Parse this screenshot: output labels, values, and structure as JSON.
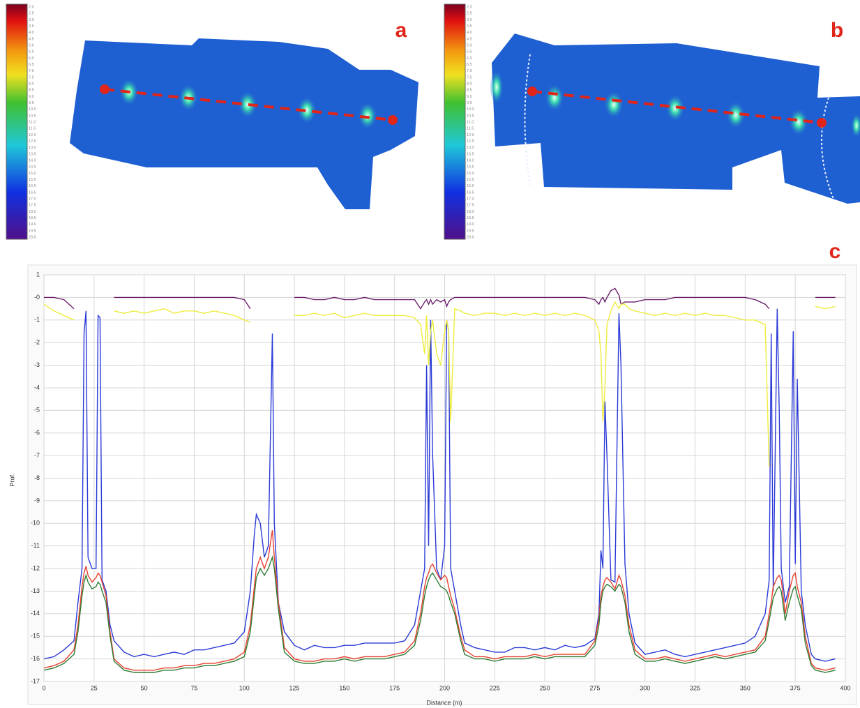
{
  "figure_labels": [
    "a",
    "b",
    "c"
  ],
  "colorbar_labels": [
    "2.0",
    "2.5",
    "3.0",
    "3.5",
    "4.0",
    "4.5",
    "5.0",
    "5.5",
    "6.0",
    "6.5",
    "7.0",
    "7.5",
    "8.0",
    "8.5",
    "9.0",
    "9.5",
    "10.0",
    "10.5",
    "11.0",
    "11.5",
    "12.0",
    "12.5",
    "13.0",
    "13.5",
    "14.0",
    "14.5",
    "15.0",
    "15.5",
    "16.0",
    "16.5",
    "17.0",
    "17.5",
    "18.0",
    "18.5",
    "19.0",
    "19.5",
    "20.0"
  ],
  "chart_data": {
    "type": "line",
    "xlabel": "Distance (m)",
    "ylabel": "Prof.",
    "xlim": [
      0,
      400
    ],
    "ylim": [
      -17,
      1
    ],
    "xticks": [
      0,
      25,
      50,
      75,
      100,
      125,
      150,
      175,
      200,
      225,
      250,
      275,
      300,
      325,
      350,
      375,
      400
    ],
    "yticks": [
      1,
      {
        "value": 0,
        "label": "-0"
      },
      -1,
      -2,
      -3,
      -4,
      -5,
      -6,
      -7,
      -8,
      -9,
      -10,
      -11,
      -12,
      -13,
      -14,
      -15,
      -16,
      -17
    ],
    "grid": true,
    "x": [
      0,
      5,
      10,
      15,
      17,
      19,
      20,
      21,
      22,
      24,
      26,
      27,
      28,
      29,
      31,
      33,
      35,
      40,
      45,
      50,
      55,
      60,
      65,
      70,
      75,
      80,
      85,
      90,
      95,
      100,
      103,
      105,
      106,
      108,
      110,
      112,
      114,
      115,
      117,
      120,
      125,
      130,
      135,
      140,
      145,
      150,
      155,
      160,
      165,
      170,
      175,
      180,
      185,
      188,
      190,
      191,
      192,
      193,
      194,
      196,
      198,
      200,
      201,
      202,
      203,
      205,
      208,
      210,
      215,
      220,
      225,
      230,
      235,
      240,
      245,
      250,
      255,
      260,
      265,
      270,
      275,
      277,
      278,
      279,
      280,
      281,
      283,
      285,
      287,
      288,
      290,
      292,
      295,
      300,
      305,
      310,
      315,
      320,
      325,
      330,
      335,
      340,
      345,
      350,
      355,
      360,
      362,
      363,
      364,
      366,
      367,
      368,
      370,
      372,
      374,
      375,
      376,
      378,
      380,
      383,
      385,
      390,
      395
    ],
    "series": [
      {
        "color": "#2a3ad6",
        "values": [
          -16,
          -15.9,
          -15.6,
          -15.2,
          -13.5,
          -12,
          -1.6,
          -0.6,
          -11.5,
          -12,
          -12,
          -0.8,
          -0.9,
          -12.5,
          -13,
          -14.5,
          -15.2,
          -15.7,
          -15.9,
          -15.8,
          -15.9,
          -15.8,
          -15.7,
          -15.8,
          -15.6,
          -15.6,
          -15.5,
          -15.4,
          -15.3,
          -14.8,
          -13,
          -10.5,
          -9.6,
          -10,
          -11.5,
          -11,
          -1.6,
          -10,
          -13.5,
          -14.8,
          -15.4,
          -15.6,
          -15.4,
          -15.5,
          -15.5,
          -15.4,
          -15.4,
          -15.3,
          -15.3,
          -15.3,
          -15.3,
          -15.2,
          -14.5,
          -13,
          -12,
          -3,
          -11,
          -1,
          -7,
          -12,
          -12.5,
          -11,
          -1,
          -1.5,
          -12,
          -13,
          -14.5,
          -15.3,
          -15.5,
          -15.6,
          -15.7,
          -15.7,
          -15.5,
          -15.5,
          -15.6,
          -15.5,
          -15.6,
          -15.4,
          -15.5,
          -15.4,
          -15.1,
          -14,
          -11.2,
          -12,
          -4.6,
          -7,
          -12.5,
          -12.6,
          -0.7,
          -3,
          -11.8,
          -14,
          -15.3,
          -15.8,
          -15.7,
          -15.6,
          -15.8,
          -15.9,
          -15.8,
          -15.7,
          -15.6,
          -15.5,
          -15.4,
          -15.3,
          -15,
          -14,
          -12.5,
          -1.6,
          -13,
          -0.5,
          -5,
          -12,
          -13.5,
          -12.8,
          -1.5,
          -11.8,
          -3.6,
          -13,
          -14.5,
          -15.8,
          -16,
          -16.1,
          -16
        ]
      },
      {
        "color": "#e8412f",
        "values": [
          -16.4,
          -16.3,
          -16.1,
          -15.6,
          -14.5,
          -12.8,
          -12.2,
          -11.9,
          -12.3,
          -12.6,
          -12.4,
          -12.2,
          -12.3,
          -12.6,
          -13.2,
          -14.8,
          -16,
          -16.4,
          -16.5,
          -16.5,
          -16.5,
          -16.4,
          -16.4,
          -16.3,
          -16.3,
          -16.2,
          -16.2,
          -16.1,
          -16,
          -15.7,
          -14.5,
          -12.8,
          -12,
          -11.5,
          -12,
          -11.5,
          -10.3,
          -11.5,
          -13.5,
          -15.5,
          -16,
          -16.1,
          -16.1,
          -16,
          -16,
          -15.9,
          -16,
          -15.9,
          -15.9,
          -15.9,
          -15.8,
          -15.7,
          -15.2,
          -14,
          -12.8,
          -12.4,
          -12.2,
          -11.9,
          -11.8,
          -12.2,
          -12.5,
          -12.3,
          -12.4,
          -12.8,
          -13.2,
          -13.8,
          -15,
          -15.6,
          -15.9,
          -15.9,
          -16,
          -15.9,
          -15.9,
          -15.9,
          -15.8,
          -15.9,
          -15.8,
          -15.8,
          -15.8,
          -15.8,
          -15.2,
          -14.2,
          -13.2,
          -12.8,
          -12.5,
          -12.4,
          -12.6,
          -12.9,
          -12.3,
          -12.5,
          -13.2,
          -14.5,
          -15.6,
          -16,
          -16,
          -15.9,
          -16,
          -16.1,
          -16,
          -15.9,
          -15.8,
          -15.9,
          -15.8,
          -15.7,
          -15.6,
          -15,
          -14,
          -13.5,
          -12.8,
          -12.4,
          -12.3,
          -12.5,
          -14,
          -13,
          -12.3,
          -12.2,
          -12.8,
          -13.5,
          -15,
          -16.2,
          -16.4,
          -16.5,
          -16.4
        ]
      },
      {
        "color": "#2f7d35",
        "values": [
          -16.5,
          -16.4,
          -16.2,
          -15.8,
          -14.8,
          -13.2,
          -12.6,
          -12.3,
          -12.6,
          -12.9,
          -12.8,
          -12.6,
          -12.7,
          -13,
          -13.5,
          -15,
          -16.1,
          -16.5,
          -16.6,
          -16.6,
          -16.6,
          -16.5,
          -16.5,
          -16.4,
          -16.4,
          -16.3,
          -16.3,
          -16.2,
          -16.1,
          -15.9,
          -14.8,
          -13.2,
          -12.4,
          -12,
          -12.3,
          -12,
          -11.5,
          -12,
          -13.8,
          -15.7,
          -16.1,
          -16.2,
          -16.2,
          -16.1,
          -16.1,
          -16,
          -16.1,
          -16,
          -16,
          -16,
          -15.9,
          -15.8,
          -15.4,
          -14.3,
          -13.2,
          -12.8,
          -12.5,
          -12.3,
          -12.2,
          -12.5,
          -12.8,
          -12.9,
          -13,
          -13.2,
          -13.5,
          -14,
          -15.2,
          -15.8,
          -16,
          -16,
          -16.1,
          -16,
          -16,
          -16,
          -15.9,
          -16,
          -15.9,
          -15.9,
          -15.9,
          -15.9,
          -15.4,
          -14.5,
          -13.5,
          -13,
          -12.8,
          -12.7,
          -12.8,
          -13,
          -12.7,
          -12.8,
          -13.5,
          -14.8,
          -15.8,
          -16.1,
          -16.1,
          -16,
          -16.1,
          -16.2,
          -16.1,
          -16,
          -15.9,
          -16,
          -15.9,
          -15.8,
          -15.7,
          -15.2,
          -14.3,
          -13.8,
          -13.3,
          -12.9,
          -12.8,
          -13,
          -14.3,
          -13.5,
          -12.9,
          -12.8,
          -13.2,
          -13.8,
          -15.3,
          -16.3,
          -16.5,
          -16.6,
          -16.5
        ]
      },
      {
        "color": "#6b1f6b",
        "values": [
          0,
          0,
          -0.1,
          -0.5,
          null,
          null,
          null,
          null,
          null,
          null,
          null,
          null,
          null,
          null,
          null,
          null,
          0,
          0,
          0,
          0,
          0,
          0,
          0,
          0,
          0,
          0,
          0,
          0,
          0,
          -0.1,
          -0.5,
          null,
          null,
          null,
          null,
          null,
          null,
          null,
          null,
          null,
          0,
          0,
          -0.1,
          -0.1,
          0,
          -0.1,
          -0.1,
          0,
          -0.1,
          -0.1,
          -0.1,
          -0.1,
          -0.1,
          -0.5,
          -0.2,
          -0.1,
          -0.3,
          -0.1,
          -0.3,
          -0.1,
          -0.2,
          -0.1,
          -0.4,
          -0.2,
          -0.1,
          0,
          0,
          0,
          0,
          0,
          0,
          0,
          0,
          0,
          0,
          0,
          0,
          0,
          0,
          0,
          -0.1,
          -0.3,
          -0.1,
          0,
          -0.2,
          0,
          0.3,
          0.4,
          0.1,
          -0.3,
          -0.2,
          -0.2,
          -0.2,
          -0.1,
          -0.1,
          -0.1,
          0,
          0,
          0,
          0,
          0,
          0,
          0,
          0,
          -0.1,
          -0.3,
          -0.5,
          null,
          null,
          null,
          null,
          null,
          null,
          null,
          null,
          null,
          null,
          null,
          null,
          null,
          0,
          0,
          0
        ]
      },
      {
        "color": "#eeec3c",
        "values": [
          -0.3,
          -0.6,
          -0.8,
          -1,
          null,
          null,
          null,
          null,
          null,
          null,
          null,
          null,
          null,
          null,
          null,
          null,
          -0.6,
          -0.7,
          -0.6,
          -0.7,
          -0.6,
          -0.5,
          -0.7,
          -0.6,
          -0.6,
          -0.7,
          -0.6,
          -0.7,
          -0.8,
          -1,
          -1.1,
          null,
          null,
          null,
          null,
          null,
          null,
          null,
          null,
          null,
          -0.8,
          -0.8,
          -0.7,
          -0.8,
          -0.7,
          -0.9,
          -0.8,
          -0.7,
          -0.8,
          -0.8,
          -0.8,
          -0.8,
          -0.9,
          -1.2,
          -2.5,
          -0.8,
          -3,
          -1.5,
          -1,
          -2.5,
          -3,
          -1.5,
          -1,
          -1.5,
          -5.5,
          -0.5,
          -0.6,
          -0.7,
          -0.8,
          -0.7,
          -0.7,
          -0.8,
          -0.7,
          -0.8,
          -0.7,
          -0.8,
          -0.7,
          -0.8,
          -0.7,
          -0.8,
          -1,
          -1.5,
          -2.5,
          -5.5,
          -4,
          -1.2,
          -0.6,
          -0.2,
          -0.5,
          -0.3,
          -0.3,
          -0.5,
          -0.6,
          -0.7,
          -0.8,
          -0.7,
          -0.8,
          -0.7,
          -0.8,
          -0.7,
          -0.8,
          -0.8,
          -0.9,
          -1,
          -1,
          -1.2,
          -7.5,
          null,
          null,
          null,
          null,
          null,
          null,
          null,
          null,
          null,
          null,
          null,
          null,
          null,
          -0.4,
          -0.5,
          -0.4
        ]
      }
    ]
  }
}
